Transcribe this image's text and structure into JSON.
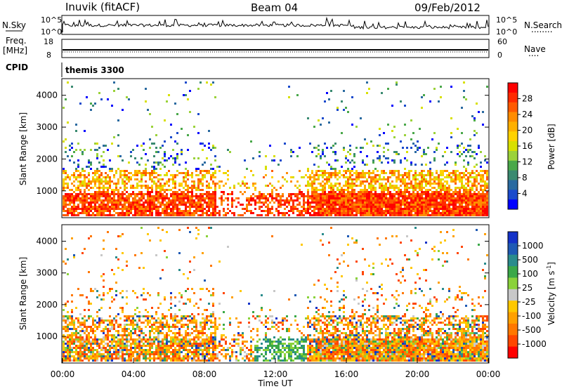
{
  "header": {
    "station": "Inuvik (fitACF)",
    "beam": "Beam 04",
    "date": "09/Feb/2012"
  },
  "top_panels": {
    "nsky": {
      "left_label": "N.Sky",
      "left_ticks": [
        "10^5",
        "10^0"
      ],
      "right_ticks": [
        "10^5",
        "10^0"
      ],
      "right_label": "N.Search",
      "right_dots": "........"
    },
    "freq": {
      "left_label_1": "Freq.",
      "left_label_2": "[MHz]",
      "left_ticks": [
        "18",
        "8"
      ],
      "right_ticks": [
        "60",
        "0"
      ],
      "right_label": "Nave",
      "right_dots": "...."
    },
    "cpid": {
      "left_label": "CPID",
      "program": "themis 3300"
    }
  },
  "chart_data": [
    {
      "type": "heatmap",
      "name": "power",
      "xlabel": "",
      "ylabel": "Slant Range [km]",
      "xlim": [
        0,
        24
      ],
      "ylim": [
        180,
        4500
      ],
      "yticks": [
        1000,
        2000,
        3000,
        4000
      ],
      "colorbar": {
        "label": "Power [dB]",
        "ticks": [
          "28",
          "24",
          "20",
          "16",
          "12",
          "8",
          "4"
        ],
        "colors": [
          "#ff0000",
          "#ff2a00",
          "#ff5a00",
          "#ff8c00",
          "#ffb000",
          "#ffd200",
          "#d8e000",
          "#9bd23a",
          "#4aa84a",
          "#3a8a70",
          "#2a6aa0",
          "#1a4acc",
          "#0000ff"
        ]
      }
    },
    {
      "type": "heatmap",
      "name": "velocity",
      "xlabel": "Time UT",
      "ylabel": "Slant Range [km]",
      "xlim": [
        0,
        24
      ],
      "ylim": [
        180,
        4500
      ],
      "yticks": [
        1000,
        2000,
        3000,
        4000
      ],
      "xtick_labels": [
        "00:00",
        "04:00",
        "08:00",
        "12:00",
        "16:00",
        "20:00",
        "00:00"
      ],
      "colorbar": {
        "label": "Velocity [m s",
        "label_sup": "-1",
        "ticks": [
          "1000",
          "500",
          "100",
          "25",
          "-25",
          "-100",
          "-500",
          "-1000"
        ],
        "colors": [
          "#1432c8",
          "#1e5ab4",
          "#2a8c8c",
          "#3aa848",
          "#8ad23a",
          "#c8c8c8",
          "#ffc800",
          "#ffa000",
          "#ff7800",
          "#ff4600",
          "#ff0000"
        ]
      }
    }
  ]
}
